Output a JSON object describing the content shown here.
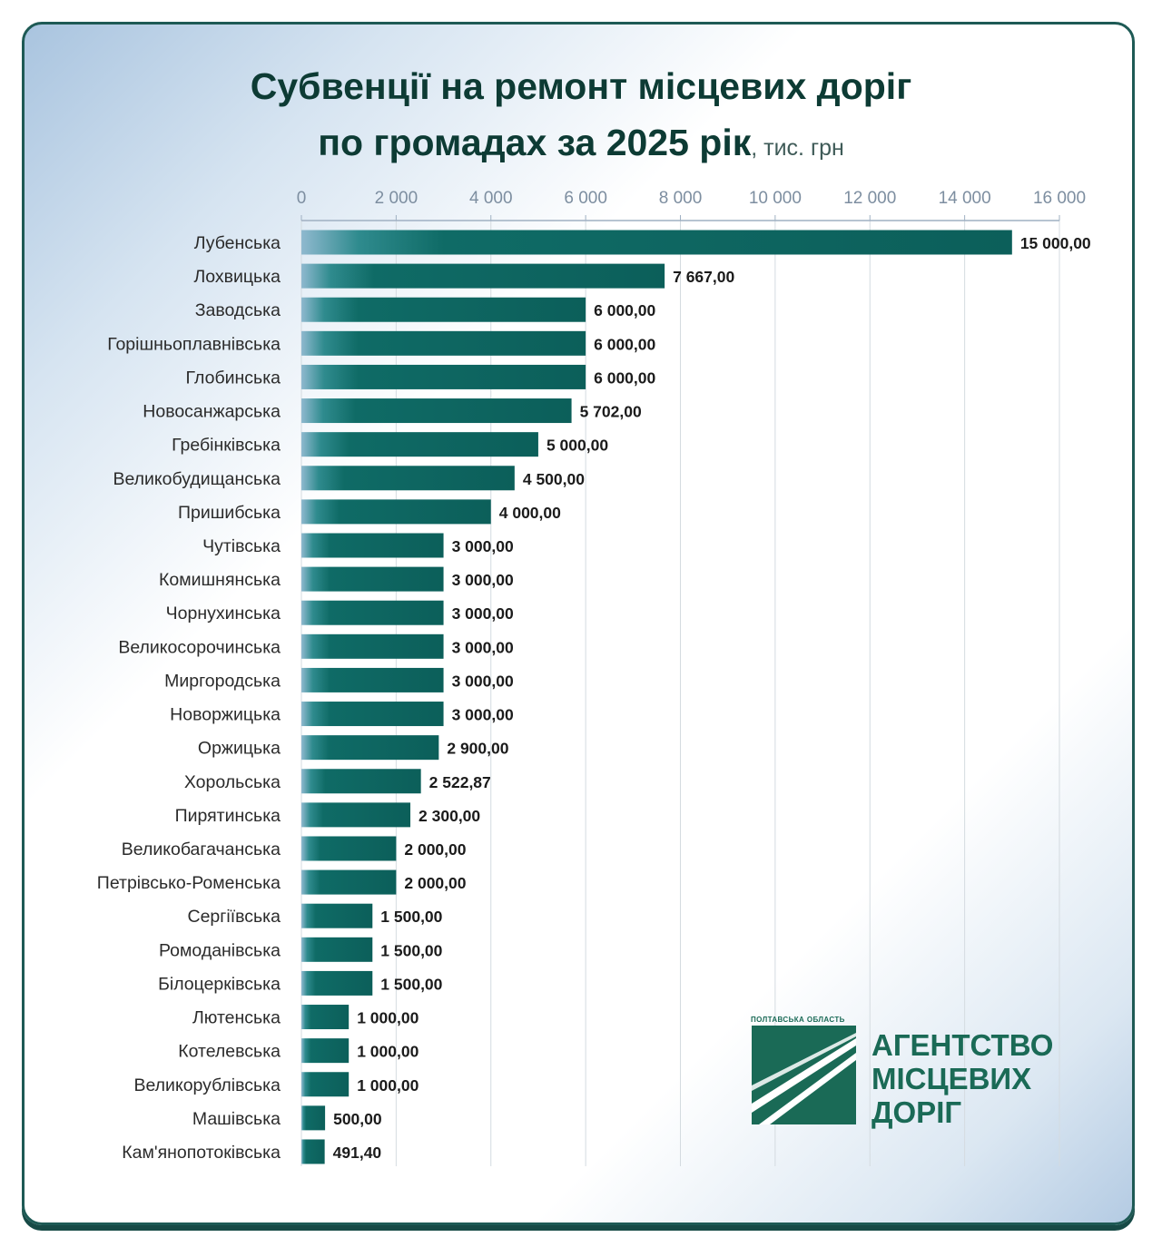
{
  "title_line1": "Субвенції на ремонт місцевих доріг",
  "title_line2": "по громадах за 2025 рік",
  "title_unit": ", тис. грн",
  "chart_data": {
    "type": "bar",
    "orientation": "horizontal",
    "title": "Субвенції на ремонт місцевих доріг по громадах за 2025 рік, тис. грн",
    "xlim": [
      0,
      16000
    ],
    "x_ticks": [
      0,
      2000,
      4000,
      6000,
      8000,
      10000,
      12000,
      14000,
      16000
    ],
    "x_tick_labels": [
      "0",
      "2 000",
      "4 000",
      "6 000",
      "8 000",
      "10 000",
      "12 000",
      "14 000",
      "16 000"
    ],
    "x_axis_position": "top",
    "grid": true,
    "bar_color": "#0f6b66",
    "categories": [
      "Лубенська",
      "Лохвицька",
      "Заводська",
      "Горішньоплавнівська",
      "Глобинська",
      "Новосанжарська",
      "Гребінківська",
      "Великобудищанська",
      "Пришибська",
      "Чутівська",
      "Комишнянська",
      "Чорнухинська",
      "Великосорочинська",
      "Миргородська",
      "Новоржицька",
      "Оржицька",
      "Хорольська",
      "Пирятинська",
      "Великобагачанська",
      "Петрівсько-Роменська",
      "Сергіївська",
      "Ромоданівська",
      "Білоцерківська",
      "Лютенська",
      "Котелевська",
      "Великорублівська",
      "Машівська",
      "Кам'янопотоківська"
    ],
    "values": [
      15000,
      7667,
      6000,
      6000,
      6000,
      5702,
      5000,
      4500,
      4000,
      3000,
      3000,
      3000,
      3000,
      3000,
      3000,
      2900,
      2522.87,
      2300,
      2000,
      2000,
      1500,
      1500,
      1500,
      1000,
      1000,
      1000,
      500,
      491.4
    ],
    "value_labels": [
      "15 000,00",
      "7 667,00",
      "6 000,00",
      "6 000,00",
      "6 000,00",
      "5 702,00",
      "5 000,00",
      "4 500,00",
      "4 000,00",
      "3 000,00",
      "3 000,00",
      "3 000,00",
      "3 000,00",
      "3 000,00",
      "3 000,00",
      "2 900,00",
      "2 522,87",
      "2 300,00",
      "2 000,00",
      "2 000,00",
      "1 500,00",
      "1 500,00",
      "1 500,00",
      "1 000,00",
      "1 000,00",
      "1 000,00",
      "500,00",
      "491,40"
    ]
  },
  "logo": {
    "small_text": "Полтавська область",
    "line1": "АГЕНТСТВО",
    "line2": "МІСЦЕВИХ",
    "line3": "ДОРІГ",
    "color": "#1a6a56"
  }
}
